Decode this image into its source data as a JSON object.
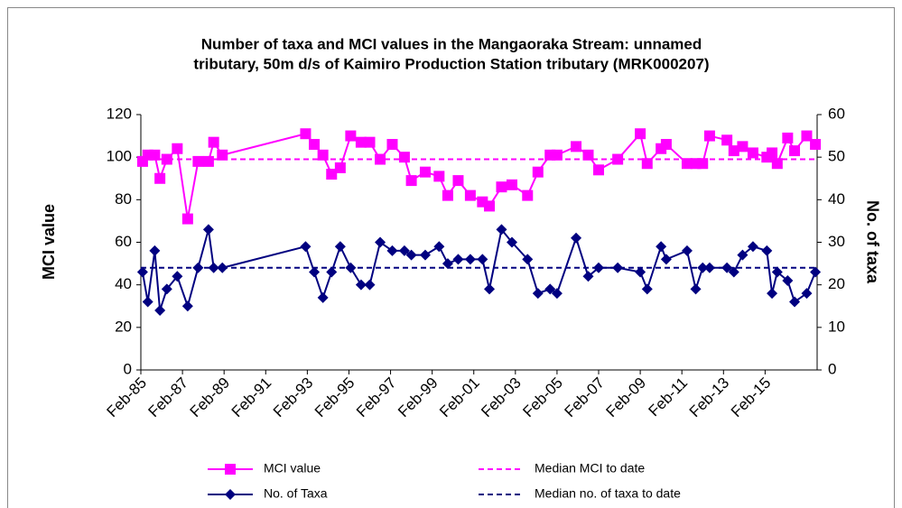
{
  "chart_data": {
    "type": "line",
    "title": "Number of taxa and MCI values in the Mangaoraka Stream: unnamed",
    "subtitle": "tributary, 50m d/s of Kaimiro Production Station tributary (MRK000207)",
    "ylabel": "MCI value",
    "y2label": "No. of taxa",
    "x": [
      "1985-03",
      "1985-06",
      "1985-10",
      "1986-01",
      "1986-05",
      "1986-11",
      "1987-05",
      "1987-11",
      "1988-05",
      "1988-08",
      "1989-01",
      "1993-01",
      "1993-06",
      "1993-11",
      "1994-04",
      "1994-09",
      "1995-03",
      "1995-09",
      "1996-02",
      "1996-08",
      "1997-03",
      "1997-10",
      "1998-02",
      "1998-10",
      "1999-06",
      "1999-11",
      "2000-05",
      "2000-12",
      "2001-07",
      "2001-11",
      "2002-06",
      "2002-12",
      "2003-09",
      "2004-03",
      "2004-10",
      "2005-02",
      "2006-01",
      "2006-08",
      "2007-02",
      "2008-01",
      "2009-02",
      "2009-06",
      "2010-02",
      "2010-05",
      "2011-05",
      "2011-10",
      "2012-02",
      "2012-06",
      "2013-04",
      "2013-08",
      "2014-01",
      "2014-07",
      "2015-03",
      "2015-06",
      "2015-09",
      "2016-03",
      "2016-07",
      "2017-02",
      "2017-07"
    ],
    "series": [
      {
        "name": "MCI value",
        "color": "#ff00ff",
        "marker": "square",
        "axis": "y",
        "values": [
          98,
          101,
          101,
          90,
          99,
          104,
          71,
          98,
          98,
          107,
          101,
          111,
          106,
          101,
          92,
          95,
          110,
          107,
          107,
          99,
          106,
          100,
          89,
          93,
          91,
          82,
          89,
          82,
          79,
          77,
          86,
          87,
          82,
          93,
          101,
          101,
          105,
          101,
          94,
          99,
          111,
          97,
          104,
          106,
          97,
          97,
          97,
          110,
          108,
          103,
          105,
          102,
          100,
          102,
          97,
          109,
          103,
          110,
          106
        ]
      },
      {
        "name": "No. of Taxa",
        "color": "#000080",
        "marker": "diamond",
        "axis": "y2",
        "values": [
          23,
          16,
          28,
          14,
          19,
          22,
          15,
          24,
          33,
          24,
          24,
          29,
          23,
          17,
          23,
          29,
          24,
          20,
          20,
          30,
          28,
          28,
          27,
          27,
          29,
          25,
          26,
          26,
          26,
          19,
          33,
          30,
          26,
          18,
          19,
          18,
          31,
          22,
          24,
          24,
          23,
          19,
          29,
          26,
          28,
          19,
          24,
          24,
          24,
          23,
          27,
          29,
          28,
          18,
          23,
          21,
          16,
          18,
          23
        ]
      }
    ],
    "reference_lines": [
      {
        "name": "Median MCI to date",
        "color": "#ff00ff",
        "value": 99,
        "axis": "y"
      },
      {
        "name": "Median no. of taxa to date",
        "color": "#000080",
        "value": 24,
        "axis": "y2"
      }
    ],
    "xlim": [
      "1985-02",
      "2017-08"
    ],
    "xticks": [
      {
        "value": "1985-02",
        "label": "Feb-85"
      },
      {
        "value": "1987-02",
        "label": "Feb-87"
      },
      {
        "value": "1989-02",
        "label": "Feb-89"
      },
      {
        "value": "1991-02",
        "label": "Feb-91"
      },
      {
        "value": "1993-02",
        "label": "Feb-93"
      },
      {
        "value": "1995-02",
        "label": "Feb-95"
      },
      {
        "value": "1997-02",
        "label": "Feb-97"
      },
      {
        "value": "1999-02",
        "label": "Feb-99"
      },
      {
        "value": "2001-02",
        "label": "Feb-01"
      },
      {
        "value": "2003-02",
        "label": "Feb-03"
      },
      {
        "value": "2005-02",
        "label": "Feb-05"
      },
      {
        "value": "2007-02",
        "label": "Feb-07"
      },
      {
        "value": "2009-02",
        "label": "Feb-09"
      },
      {
        "value": "2011-02",
        "label": "Feb-11"
      },
      {
        "value": "2013-02",
        "label": "Feb-13"
      },
      {
        "value": "2015-02",
        "label": "Feb-15"
      }
    ],
    "ylim": [
      0,
      120
    ],
    "yticks": [
      0,
      20,
      40,
      60,
      80,
      100,
      120
    ],
    "y2lim": [
      0,
      60
    ],
    "y2ticks": [
      0,
      10,
      20,
      30,
      40,
      50,
      60
    ],
    "grid": false
  }
}
